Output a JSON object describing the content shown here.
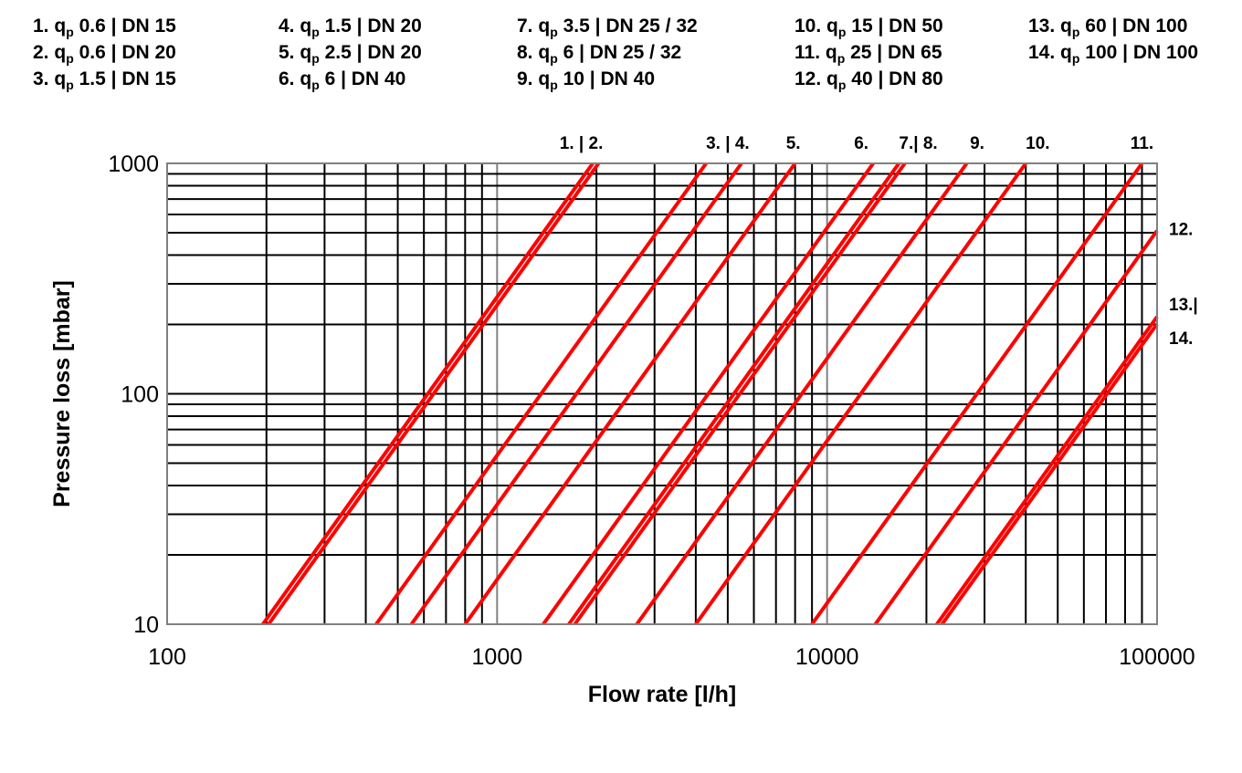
{
  "legend": {
    "columns": [
      {
        "items": [
          {
            "num": "1.",
            "sym": "q",
            "sub": "p",
            "rest": " 0.6 | DN 15"
          },
          {
            "num": "2.",
            "sym": "q",
            "sub": "p",
            "rest": " 0.6 | DN 20"
          },
          {
            "num": "3.",
            "sym": "q",
            "sub": "p",
            "rest": " 1.5 | DN 15"
          }
        ]
      },
      {
        "items": [
          {
            "num": "4.",
            "sym": "q",
            "sub": "p",
            "rest": " 1.5 | DN 20"
          },
          {
            "num": "5.",
            "sym": "q",
            "sub": "p",
            "rest": " 2.5 | DN 20"
          },
          {
            "num": "6.",
            "sym": "q",
            "sub": "p",
            "rest": " 6 | DN 40"
          }
        ]
      },
      {
        "items": [
          {
            "num": "7.",
            "sym": "q",
            "sub": "p",
            "rest": " 3.5 | DN 25 / 32"
          },
          {
            "num": "8.",
            "sym": "q",
            "sub": "p",
            "rest": " 6 | DN 25 / 32"
          },
          {
            "num": "9.",
            "sym": "q",
            "sub": "p",
            "rest": " 10 | DN 40"
          }
        ]
      },
      {
        "items": [
          {
            "num": "10.",
            "sym": "q",
            "sub": "p",
            "rest": " 15 | DN 50"
          },
          {
            "num": "11.",
            "sym": "q",
            "sub": "p",
            "rest": " 25 | DN 65"
          },
          {
            "num": "12.",
            "sym": "q",
            "sub": "p",
            "rest": " 40 | DN 80"
          }
        ]
      },
      {
        "items": [
          {
            "num": "13.",
            "sym": "q",
            "sub": "p",
            "rest": " 60 | DN 100"
          },
          {
            "num": "14.",
            "sym": "q",
            "sub": "p",
            "rest": " 100 | DN 100"
          }
        ]
      }
    ]
  },
  "chart_data": {
    "type": "line",
    "title": "",
    "xlabel": "Flow rate [l/h]",
    "ylabel": "Pressure loss [mbar]",
    "x_scale": "log",
    "y_scale": "log",
    "xlim": [
      100,
      100000
    ],
    "ylim": [
      10,
      1000
    ],
    "x_ticks": [
      "100",
      "1000",
      "10000",
      "100000"
    ],
    "y_ticks": [
      "10",
      "100",
      "1000"
    ],
    "grid": true,
    "line_color": "#ff0000",
    "series": [
      {
        "values": [
          [
            195,
            10
          ],
          [
            1950,
            1000
          ]
        ]
      },
      {
        "values": [
          [
            203,
            10
          ],
          [
            2030,
            1000
          ]
        ]
      },
      {
        "values": [
          [
            430,
            10
          ],
          [
            4300,
            1000
          ]
        ]
      },
      {
        "values": [
          [
            550,
            10
          ],
          [
            5500,
            1000
          ]
        ]
      },
      {
        "values": [
          [
            800,
            10
          ],
          [
            8000,
            1000
          ]
        ]
      },
      {
        "values": [
          [
            1380,
            10
          ],
          [
            13800,
            1000
          ]
        ]
      },
      {
        "values": [
          [
            1650,
            10
          ],
          [
            16500,
            1000
          ]
        ]
      },
      {
        "values": [
          [
            1720,
            10
          ],
          [
            17200,
            1000
          ]
        ]
      },
      {
        "values": [
          [
            2650,
            10
          ],
          [
            26500,
            1000
          ]
        ]
      },
      {
        "values": [
          [
            4000,
            10
          ],
          [
            40000,
            1000
          ]
        ]
      },
      {
        "values": [
          [
            9000,
            10
          ],
          [
            90000,
            1000
          ]
        ]
      },
      {
        "values": [
          [
            14000,
            10
          ],
          [
            100000,
            510
          ]
        ]
      },
      {
        "values": [
          [
            21500,
            10
          ],
          [
            100000,
            216
          ]
        ]
      },
      {
        "values": [
          [
            22300,
            10
          ],
          [
            100000,
            201
          ]
        ]
      }
    ],
    "curve_labels": [
      {
        "text": "1. | 2.",
        "x": 1800,
        "y": 1000,
        "side": "top"
      },
      {
        "text": "3. | 4.",
        "x": 5000,
        "y": 1000,
        "side": "top"
      },
      {
        "text": "5.",
        "x": 7900,
        "y": 1000,
        "side": "top"
      },
      {
        "text": "6.",
        "x": 12700,
        "y": 1000,
        "side": "top"
      },
      {
        "text": "7.| 8.",
        "x": 18900,
        "y": 1000,
        "side": "top"
      },
      {
        "text": "9.",
        "x": 28500,
        "y": 1000,
        "side": "top"
      },
      {
        "text": "10.",
        "x": 43500,
        "y": 1000,
        "side": "top"
      },
      {
        "text": "11.",
        "x": 90000,
        "y": 1000,
        "side": "top"
      },
      {
        "text": "12.",
        "x": 100000,
        "y": 520,
        "side": "right"
      },
      {
        "text": "13.|",
        "x": 100000,
        "y": 245,
        "side": "right"
      },
      {
        "text": "14.",
        "x": 100000,
        "y": 175,
        "side": "right"
      }
    ]
  }
}
